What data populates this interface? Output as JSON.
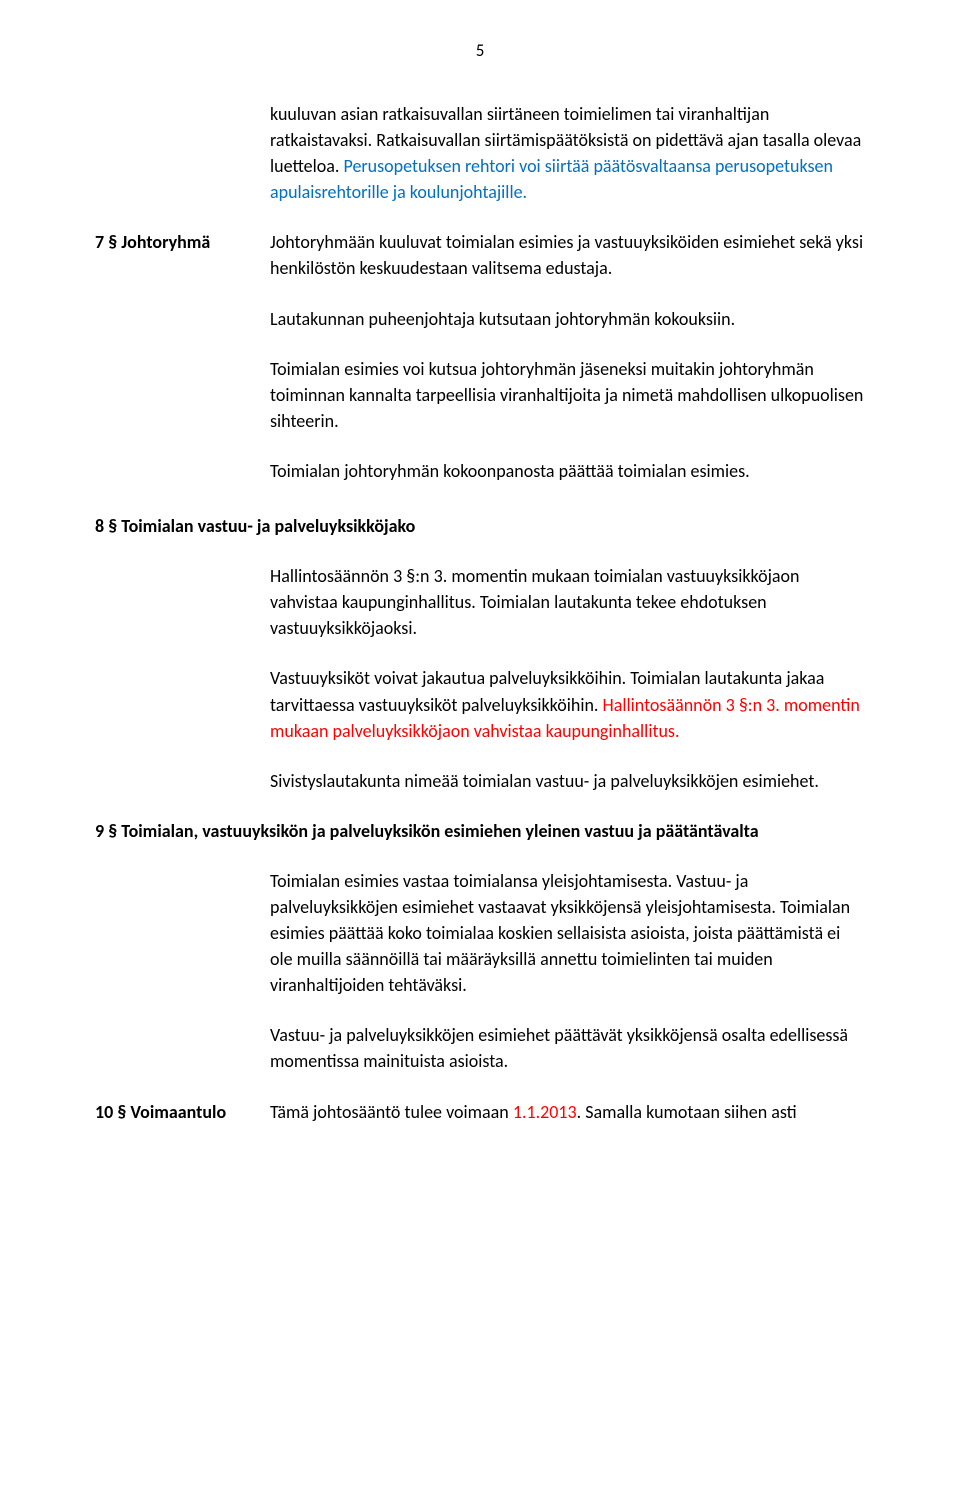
{
  "page": {
    "number": "5"
  },
  "colors": {
    "text": "#000000",
    "blue_highlight": "#0070c0",
    "red_highlight": "#ff0000",
    "background": "#ffffff"
  },
  "content": {
    "intro_p1": "kuuluvan asian ratkaisuvallan siirtäneen toimielimen tai viranhaltijan ratkaistavaksi. Ratkaisuvallan siirtämispäätöksistä on pidettävä ajan tasalla olevaa luetteloa. ",
    "intro_p1_blue": "Perusopetuksen rehtori voi siirtää päätösvaltaansa perusopetuksen apulaisrehtorille ja koulunjohtajille.",
    "s7_label": "7 § Johtoryhmä",
    "s7_p1": "Johtoryhmään kuuluvat toimialan esimies ja vastuuyksiköiden esimiehet sekä yksi henkilöstön keskuudestaan valitsema edustaja.",
    "s7_p2": "Lautakunnan puheenjohtaja kutsutaan johtoryhmän kokouksiin.",
    "s7_p3": "Toimialan esimies voi kutsua johtoryhmän jäseneksi muitakin johtoryhmän toiminnan kannalta tarpeellisia viranhaltijoita ja nimetä mahdollisen ulkopuolisen sihteerin.",
    "s7_p4": "Toimialan johtoryhmän kokoonpanosta päättää toimialan esimies.",
    "s8_heading": "8 § Toimialan vastuu- ja palveluyksikköjako",
    "s8_p1": "Hallintosäännön 3 §:n 3. momentin mukaan toimialan vastuuyksikköjaon vahvistaa kaupunginhallitus. Toimialan lautakunta tekee ehdotuksen vastuuyksikköjaoksi.",
    "s8_p2a": "Vastuuyksiköt voivat jakautua palveluyksikköihin. Toimialan lautakunta jakaa tarvittaessa vastuuyksiköt palveluyksikköihin. ",
    "s8_p2_red": "Hallintosäännön 3 §:n 3. momentin mukaan palveluyksikköjaon vahvistaa kaupunginhallitus.",
    "s8_p3": "Sivistyslautakunta nimeää toimialan vastuu- ja palveluyksikköjen esimiehet.",
    "s9_heading": "9 § Toimialan, vastuuyksikön ja palveluyksikön esimiehen yleinen vastuu ja päätäntävalta",
    "s9_p1": "Toimialan esimies vastaa toimialansa yleisjohtamisesta. Vastuu- ja palveluyksikköjen esimiehet vastaavat yksikköjensä yleisjohtamisesta. Toimialan esimies päättää koko toimialaa koskien sellaisista asioista, joista päättämistä ei ole muilla säännöillä tai määräyksillä annettu toimielinten tai muiden viranhaltijoiden tehtäväksi.",
    "s9_p2": "Vastuu- ja palveluyksikköjen esimiehet päättävät yksikköjensä osalta edellisessä momentissa mainituista asioista.",
    "s10_label": "10 § Voimaantulo",
    "s10_p1a": "Tämä johtosääntö tulee voimaan ",
    "s10_p1_red": "1.1.2013",
    "s10_p1b": ". Samalla kumotaan siihen asti"
  }
}
